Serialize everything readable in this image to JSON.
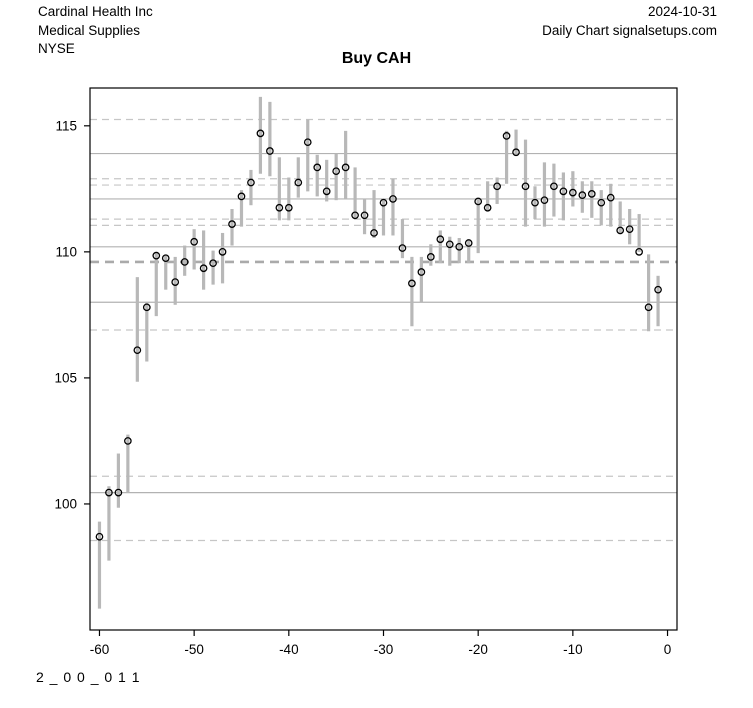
{
  "header": {
    "company": "Cardinal Health Inc",
    "industry": "Medical Supplies",
    "exchange": "NYSE",
    "date": "2024-10-31",
    "source_line": "Daily Chart signalsetups.com"
  },
  "title": "Buy CAH",
  "annotation": "2 _ 0 0 _ 0 1 1",
  "colors": {
    "bar": "#b8b8b8",
    "marker_stroke": "#000000",
    "grid_solid": "#b2b2b2",
    "grid_dashed": "#c6c6c6",
    "grid_dashed_emphasis": "#aaaaaa",
    "axis": "#000000",
    "background": "#ffffff"
  },
  "chart_data": {
    "type": "hilo-close-bar",
    "title": "Buy CAH",
    "xlabel": "",
    "ylabel": "",
    "x_ticks": [
      -60,
      -50,
      -40,
      -30,
      -20,
      -10,
      0
    ],
    "y_ticks": [
      100,
      105,
      110,
      115
    ],
    "x_range": [
      -61,
      1
    ],
    "y_range": [
      95.0,
      116.5
    ],
    "grid": "horizontal-levels",
    "legend": "none",
    "grid_solid_levels": [
      113.9,
      112.1,
      110.2,
      108.0,
      100.45
    ],
    "grid_dashed_levels": [
      115.25,
      112.9,
      112.65,
      111.3,
      111.05,
      106.9,
      101.1,
      98.55
    ],
    "grid_dashed_emphasis_levels": [
      109.6
    ],
    "columns": [
      "day",
      "high",
      "low",
      "close"
    ],
    "series": [
      [
        -60,
        99.3,
        95.85,
        98.7
      ],
      [
        -59,
        100.7,
        97.75,
        100.45
      ],
      [
        -58,
        102.0,
        99.85,
        100.45
      ],
      [
        -57,
        102.75,
        100.45,
        102.5
      ],
      [
        -56,
        109.0,
        104.85,
        106.1
      ],
      [
        -55,
        108.0,
        105.65,
        107.8
      ],
      [
        -54,
        110.0,
        107.45,
        109.85
      ],
      [
        -53,
        109.85,
        108.5,
        109.75
      ],
      [
        -52,
        109.8,
        107.9,
        108.8
      ],
      [
        -51,
        110.25,
        109.05,
        109.6
      ],
      [
        -50,
        110.9,
        109.3,
        110.4
      ],
      [
        -49,
        110.85,
        108.5,
        109.35
      ],
      [
        -48,
        110.05,
        108.7,
        109.55
      ],
      [
        -47,
        110.75,
        108.75,
        110.0
      ],
      [
        -46,
        111.7,
        110.25,
        111.1
      ],
      [
        -45,
        112.45,
        111.0,
        112.2
      ],
      [
        -44,
        113.25,
        111.85,
        112.75
      ],
      [
        -43,
        116.15,
        113.1,
        114.7
      ],
      [
        -42,
        115.95,
        113.0,
        114.0
      ],
      [
        -41,
        113.75,
        111.25,
        111.75
      ],
      [
        -40,
        112.95,
        111.25,
        111.75
      ],
      [
        -39,
        113.75,
        112.15,
        112.75
      ],
      [
        -38,
        115.25,
        112.4,
        114.35
      ],
      [
        -37,
        113.85,
        112.2,
        113.35
      ],
      [
        -36,
        113.65,
        112.0,
        112.4
      ],
      [
        -35,
        113.9,
        112.05,
        113.2
      ],
      [
        -34,
        114.8,
        112.1,
        113.35
      ],
      [
        -33,
        113.35,
        111.35,
        111.45
      ],
      [
        -32,
        112.1,
        110.7,
        111.45
      ],
      [
        -31,
        112.45,
        110.55,
        110.75
      ],
      [
        -30,
        112.05,
        110.65,
        111.95
      ],
      [
        -29,
        112.9,
        110.65,
        112.1
      ],
      [
        -28,
        111.3,
        109.75,
        110.15
      ],
      [
        -27,
        109.8,
        107.05,
        108.75
      ],
      [
        -26,
        109.8,
        108.0,
        109.2
      ],
      [
        -25,
        110.3,
        109.45,
        109.8
      ],
      [
        -24,
        110.85,
        109.55,
        110.5
      ],
      [
        -23,
        110.6,
        109.45,
        110.3
      ],
      [
        -22,
        110.55,
        109.55,
        110.2
      ],
      [
        -21,
        110.45,
        109.55,
        110.35
      ],
      [
        -20,
        112.15,
        109.95,
        112.0
      ],
      [
        -19,
        112.8,
        111.65,
        111.75
      ],
      [
        -18,
        112.95,
        111.9,
        112.6
      ],
      [
        -17,
        114.8,
        112.7,
        114.6
      ],
      [
        -16,
        114.85,
        113.8,
        113.95
      ],
      [
        -15,
        114.45,
        111.0,
        112.6
      ],
      [
        -14,
        112.6,
        111.3,
        111.95
      ],
      [
        -13,
        113.55,
        111.0,
        112.05
      ],
      [
        -12,
        113.5,
        111.4,
        112.6
      ],
      [
        -11,
        113.15,
        111.25,
        112.4
      ],
      [
        -10,
        113.2,
        111.8,
        112.35
      ],
      [
        -9,
        112.8,
        111.55,
        112.25
      ],
      [
        -8,
        112.8,
        111.35,
        112.3
      ],
      [
        -7,
        112.45,
        111.05,
        111.95
      ],
      [
        -6,
        112.7,
        111.0,
        112.15
      ],
      [
        -5,
        112.0,
        110.7,
        110.85
      ],
      [
        -4,
        111.7,
        110.3,
        110.9
      ],
      [
        -3,
        111.5,
        110.0,
        110.0
      ],
      [
        -2,
        109.9,
        106.85,
        107.8
      ],
      [
        -1,
        109.05,
        107.05,
        108.5
      ]
    ]
  }
}
